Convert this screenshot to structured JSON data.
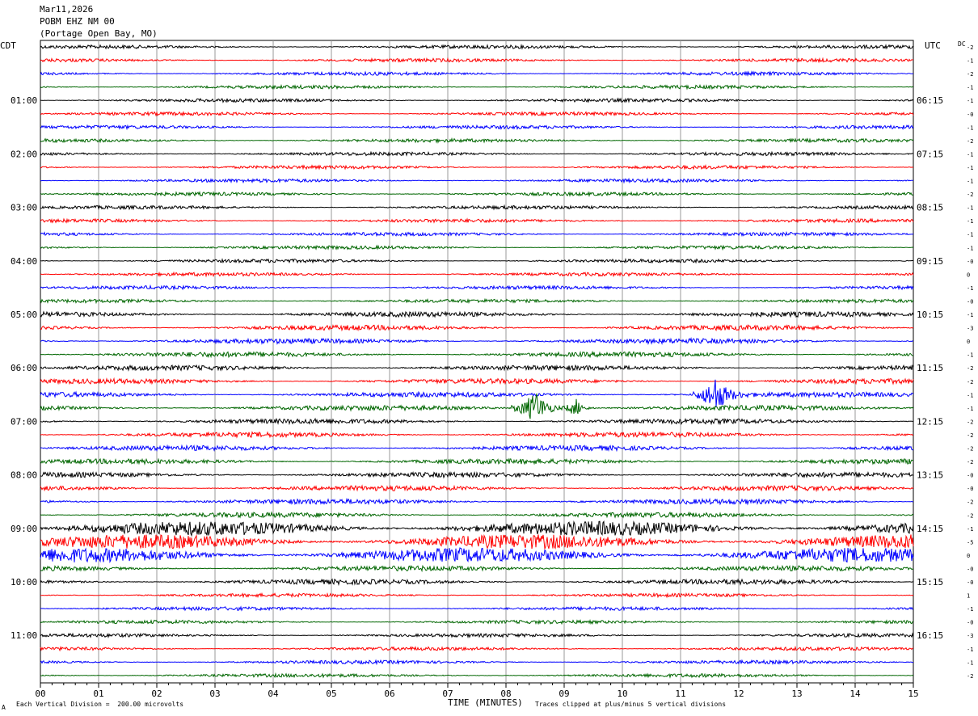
{
  "header": {
    "date": "Mar11,2026",
    "station": "POBM EHZ NM 00",
    "location": "(Portage Open Bay, MO)"
  },
  "left_label": "CDT",
  "right_label": "UTC",
  "dc_label": "DC",
  "footer": {
    "scale_note": "Each Vertical Division =  200.00 microvolts",
    "x_title": "TIME (MINUTES)",
    "clip_note": "Traces clipped at plus/minus 5 vertical divisions",
    "corner_mark": "A"
  },
  "chart_data": {
    "type": "line",
    "title": "",
    "xlabel": "TIME (MINUTES)",
    "x_ticks": [
      "00",
      "01",
      "02",
      "03",
      "04",
      "05",
      "06",
      "07",
      "08",
      "09",
      "10",
      "11",
      "12",
      "13",
      "14",
      "15"
    ],
    "xlim": [
      0,
      15
    ],
    "grid": true,
    "trace_colors": [
      "#000000",
      "#ff0000",
      "#0000ff",
      "#006600"
    ],
    "cdt_hours": [
      "01:00",
      "02:00",
      "03:00",
      "04:00",
      "05:00",
      "06:00",
      "07:00",
      "08:00",
      "09:00",
      "10:00",
      "11:00"
    ],
    "utc_hours": [
      "06:15",
      "07:15",
      "08:15",
      "09:15",
      "10:15",
      "11:15",
      "12:15",
      "13:15",
      "14:15",
      "15:15",
      "16:15"
    ],
    "dc_offsets": [
      "-2",
      "-1",
      "-2",
      "-1",
      "-1",
      "-0",
      "-1",
      "-2",
      "-1",
      "-1",
      "-1",
      "-2",
      "-1",
      "-1",
      "-1",
      "-1",
      "-0",
      "0",
      "-1",
      "-0",
      "-1",
      "-3",
      "0",
      "-1",
      "-2",
      "-2",
      "-1",
      "-1",
      "-2",
      "-2",
      "-2",
      "-2",
      "-0",
      "-0",
      "-2",
      "-2",
      "-1",
      "-5",
      "0",
      "-0",
      "-0",
      "1",
      "-1",
      "-0",
      "-3",
      "-1",
      "-1",
      "-2"
    ],
    "events": [
      {
        "row": 26,
        "minute": 11.6,
        "amplitude": "large",
        "note": "burst"
      },
      {
        "row": 27,
        "minute": 8.5,
        "amplitude": "large",
        "note": "burst"
      },
      {
        "row": 27,
        "minute": 9.2,
        "amplitude": "medium",
        "note": "burst"
      }
    ],
    "noisy_rows": [
      36,
      37,
      38
    ]
  }
}
